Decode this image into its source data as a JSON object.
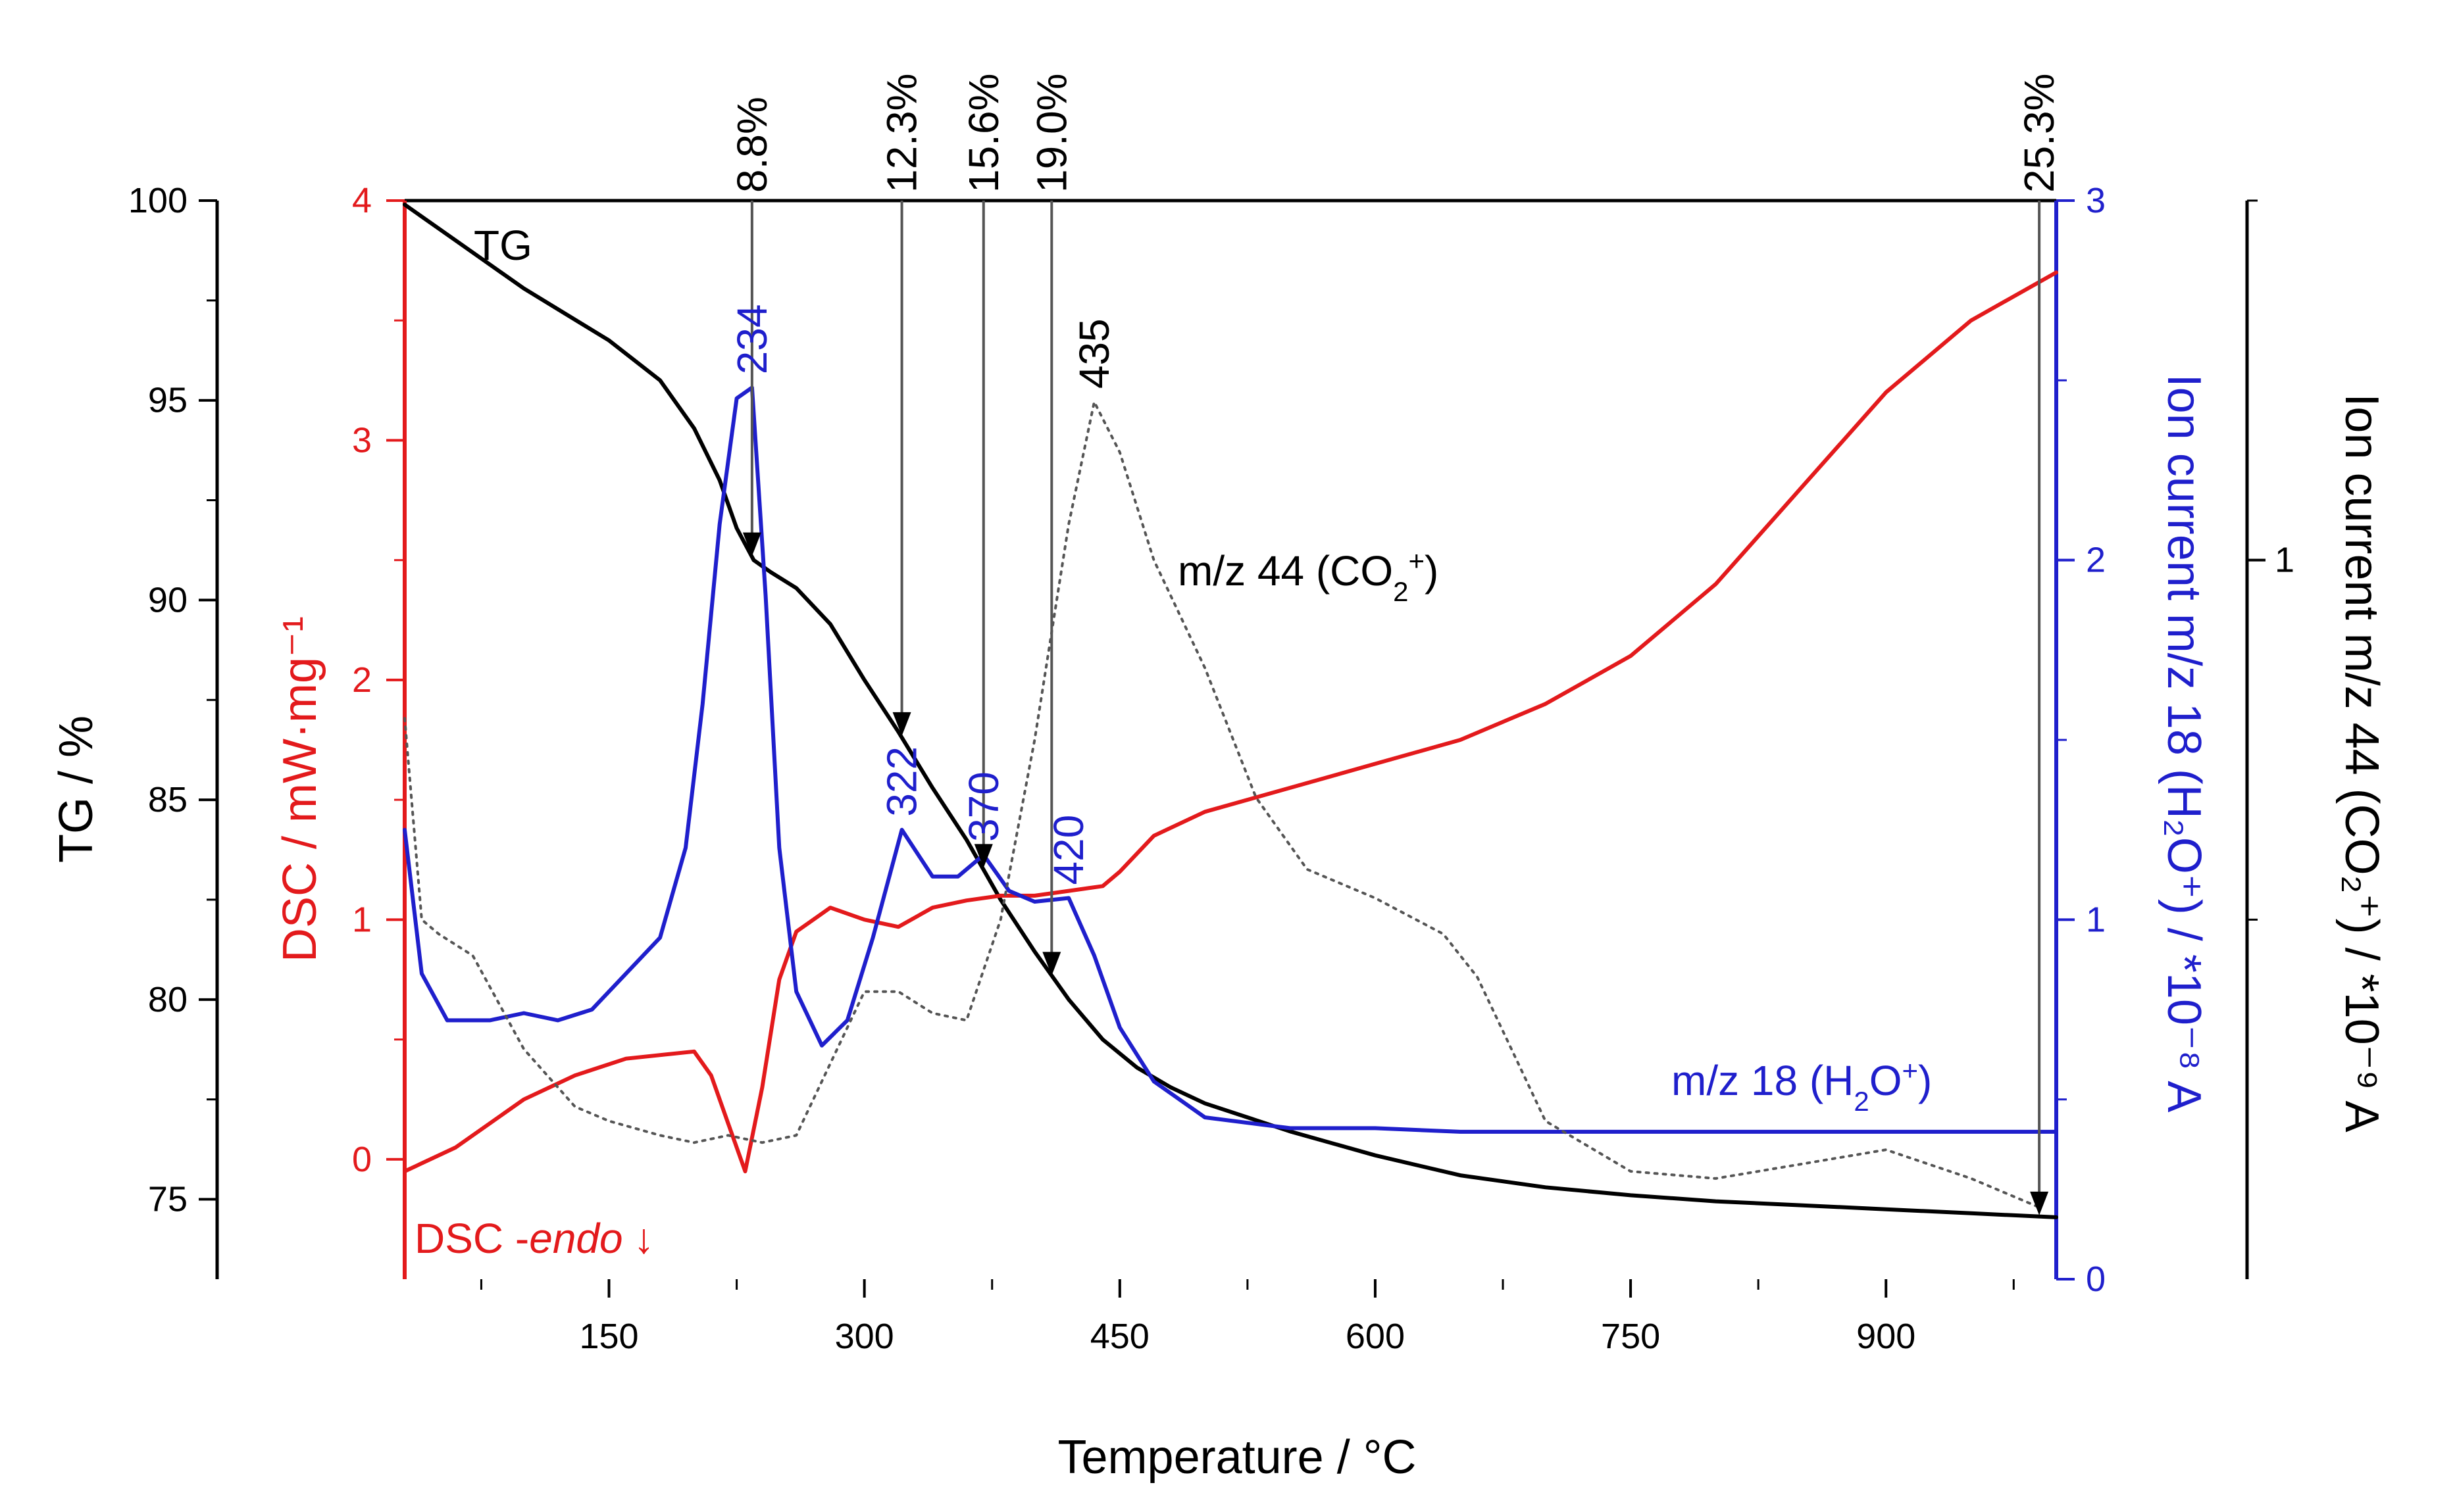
{
  "chart_data": {
    "type": "line",
    "xlabel": "Temperature / °C",
    "xlim": [
      30,
      1000
    ],
    "x_ticks": [
      150,
      300,
      450,
      600,
      750,
      900
    ],
    "y_axes": {
      "tg": {
        "label": "TG / %",
        "lim": [
          73,
          100
        ],
        "ticks": [
          75,
          80,
          85,
          90,
          95,
          100
        ],
        "color": "#000000"
      },
      "dsc": {
        "label": "DSC / mW·mg⁻¹",
        "lim": [
          -0.5,
          4
        ],
        "ticks": [
          0,
          1,
          2,
          3,
          4
        ],
        "color": "#e31a1c"
      },
      "h2o": {
        "label": "Ion current m/z 18 (H₂O⁺) / *10⁻⁸ A",
        "lim": [
          0,
          3
        ],
        "ticks": [
          0,
          1,
          2,
          3
        ],
        "color": "#1f1fcc"
      },
      "co2": {
        "label": "Ion current m/z 44 (CO₂⁺) / *10⁻⁹ A",
        "lim": [
          0,
          1.5
        ],
        "ticks": [
          1
        ],
        "color": "#000000"
      }
    },
    "series": [
      {
        "name": "TG",
        "axis": "tg",
        "color": "#000000",
        "dash": "solid",
        "x": [
          30,
          60,
          100,
          150,
          180,
          200,
          215,
          225,
          235,
          245,
          260,
          280,
          300,
          320,
          340,
          360,
          380,
          400,
          420,
          440,
          460,
          480,
          500,
          550,
          600,
          650,
          700,
          750,
          800,
          850,
          900,
          950,
          1000
        ],
        "y": [
          99.9,
          99.0,
          97.8,
          96.5,
          95.5,
          94.3,
          93.0,
          91.8,
          91.0,
          90.7,
          90.3,
          89.4,
          88.0,
          86.7,
          85.3,
          84.0,
          82.5,
          81.2,
          80.0,
          79.0,
          78.3,
          77.8,
          77.4,
          76.7,
          76.1,
          75.6,
          75.3,
          75.1,
          74.95,
          74.85,
          74.75,
          74.65,
          74.55
        ]
      },
      {
        "name": "DSC",
        "axis": "dsc",
        "color": "#e31a1c",
        "dash": "solid",
        "x": [
          30,
          60,
          100,
          130,
          160,
          200,
          210,
          220,
          230,
          240,
          250,
          260,
          280,
          300,
          320,
          340,
          360,
          380,
          400,
          420,
          440,
          450,
          470,
          500,
          550,
          600,
          650,
          700,
          750,
          800,
          850,
          900,
          950,
          1000
        ],
        "y": [
          -0.05,
          0.05,
          0.25,
          0.35,
          0.42,
          0.45,
          0.35,
          0.15,
          -0.05,
          0.3,
          0.75,
          0.95,
          1.05,
          1.0,
          0.97,
          1.05,
          1.08,
          1.1,
          1.1,
          1.12,
          1.14,
          1.2,
          1.35,
          1.45,
          1.55,
          1.65,
          1.75,
          1.9,
          2.1,
          2.4,
          2.8,
          3.2,
          3.5,
          3.7
        ]
      },
      {
        "name": "m/z 18 (H2O+)",
        "axis": "h2o",
        "color": "#1f1fcc",
        "dash": "solid",
        "x": [
          30,
          40,
          55,
          80,
          100,
          120,
          140,
          160,
          180,
          195,
          205,
          215,
          225,
          234,
          242,
          250,
          260,
          275,
          290,
          305,
          322,
          340,
          355,
          370,
          385,
          400,
          420,
          435,
          450,
          470,
          500,
          550,
          600,
          650,
          700,
          750,
          800,
          850,
          900,
          950,
          1000
        ],
        "y": [
          1.25,
          0.85,
          0.72,
          0.72,
          0.74,
          0.72,
          0.75,
          0.85,
          0.95,
          1.2,
          1.6,
          2.1,
          2.45,
          2.48,
          1.9,
          1.2,
          0.8,
          0.65,
          0.72,
          0.95,
          1.25,
          1.12,
          1.12,
          1.18,
          1.08,
          1.05,
          1.06,
          0.9,
          0.7,
          0.55,
          0.45,
          0.42,
          0.42,
          0.41,
          0.41,
          0.41,
          0.41,
          0.41,
          0.41,
          0.41,
          0.41
        ]
      },
      {
        "name": "m/z 44 (CO2+)",
        "axis": "co2",
        "color": "#555555",
        "dash": "dotted",
        "x": [
          30,
          40,
          50,
          70,
          100,
          130,
          150,
          180,
          200,
          220,
          240,
          260,
          280,
          300,
          320,
          340,
          360,
          380,
          400,
          420,
          435,
          450,
          470,
          500,
          530,
          560,
          600,
          640,
          660,
          680,
          700,
          750,
          800,
          850,
          900,
          950,
          990
        ],
        "y": [
          0.78,
          0.5,
          0.48,
          0.45,
          0.32,
          0.24,
          0.22,
          0.2,
          0.19,
          0.2,
          0.19,
          0.2,
          0.3,
          0.4,
          0.4,
          0.37,
          0.36,
          0.5,
          0.75,
          1.05,
          1.22,
          1.15,
          1.0,
          0.85,
          0.67,
          0.57,
          0.53,
          0.48,
          0.42,
          0.32,
          0.22,
          0.15,
          0.14,
          0.16,
          0.18,
          0.14,
          0.1
        ]
      }
    ],
    "series_labels": {
      "tg": "TG",
      "co2_pre": "m/z 44 (CO",
      "co2_sub": "2",
      "co2_sup": "+",
      "co2_post": ")",
      "h2o_pre": "m/z 18 (H",
      "h2o_sub": "2",
      "h2o_mid": "O",
      "h2o_sup": "+",
      "h2o_post": ")",
      "dsc_pre": "DSC -",
      "dsc_endo": "endo",
      "dsc_arrow": "↓"
    },
    "peak_labels": [
      {
        "text": "234",
        "x": 234,
        "color": "#1f1fcc"
      },
      {
        "text": "322",
        "x": 322,
        "color": "#1f1fcc"
      },
      {
        "text": "370",
        "x": 370,
        "color": "#1f1fcc"
      },
      {
        "text": "420",
        "x": 420,
        "color": "#1f1fcc"
      },
      {
        "text": "435",
        "x": 435,
        "color": "#000000"
      }
    ],
    "mass_loss_markers": [
      {
        "text": "8.8%",
        "x": 234,
        "tg": 91.1
      },
      {
        "text": "12.3%",
        "x": 322,
        "tg": 86.6
      },
      {
        "text": "15.6%",
        "x": 370,
        "tg": 83.3
      },
      {
        "text": "19.0%",
        "x": 410,
        "tg": 80.6
      },
      {
        "text": "25.3%",
        "x": 990,
        "tg": 74.6
      }
    ]
  }
}
